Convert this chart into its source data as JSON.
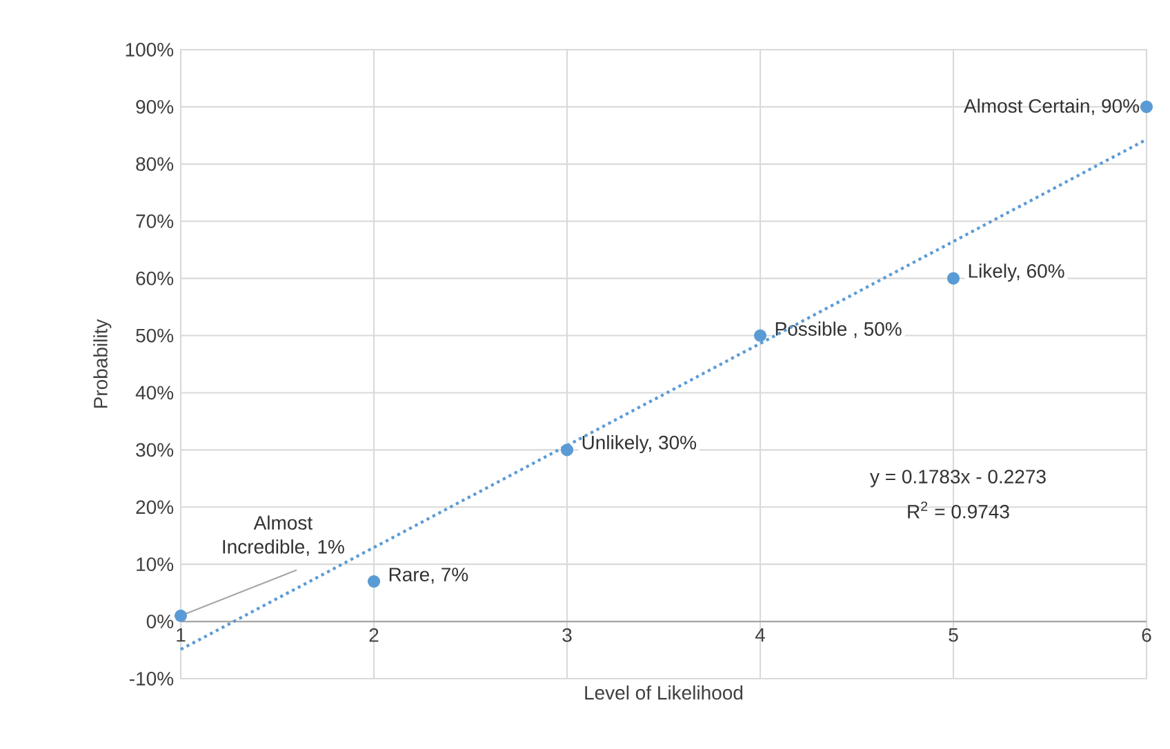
{
  "chart_data": {
    "type": "scatter",
    "xlabel": "Level of Likelihood",
    "ylabel": "Probability",
    "x": [
      1,
      2,
      3,
      4,
      5,
      6
    ],
    "series": [
      {
        "color": "#5b9bd5",
        "marker": "circle",
        "values": [
          1,
          7,
          30,
          50,
          60,
          90
        ],
        "value_labels": [
          "Almost Incredible, 1%",
          "Rare, 7%",
          "Unlikely, 30%",
          "Possible , 50%",
          "Likely, 60%",
          "Almost Certain, 90%"
        ]
      },
      {
        "type": "line",
        "color": "#5b9bd5",
        "line_style": "dotted",
        "marker": "none",
        "x": [
          1,
          6
        ],
        "values": [
          -4.9,
          84.3
        ]
      }
    ],
    "annotations": [
      "y = 0.1783x - 0.2273",
      "R$^{2}$ = 0.9743"
    ],
    "xlim": [
      1,
      6
    ],
    "xticks": [
      1,
      2,
      3,
      4,
      5,
      6
    ],
    "ylim": [
      -10,
      100
    ],
    "yticks": [
      {
        "value": -10,
        "label": "-10%"
      },
      {
        "value": 0,
        "label": "0%"
      },
      {
        "value": 10,
        "label": "10%"
      },
      {
        "value": 20,
        "label": "20%"
      },
      {
        "value": 30,
        "label": "30%"
      },
      {
        "value": 40,
        "label": "40%"
      },
      {
        "value": 50,
        "label": "50%"
      },
      {
        "value": 60,
        "label": "60%"
      },
      {
        "value": 70,
        "label": "70%"
      },
      {
        "value": 80,
        "label": "80%"
      },
      {
        "value": 90,
        "label": "90%"
      },
      {
        "value": 100,
        "label": "100%"
      }
    ],
    "grid": true
  }
}
